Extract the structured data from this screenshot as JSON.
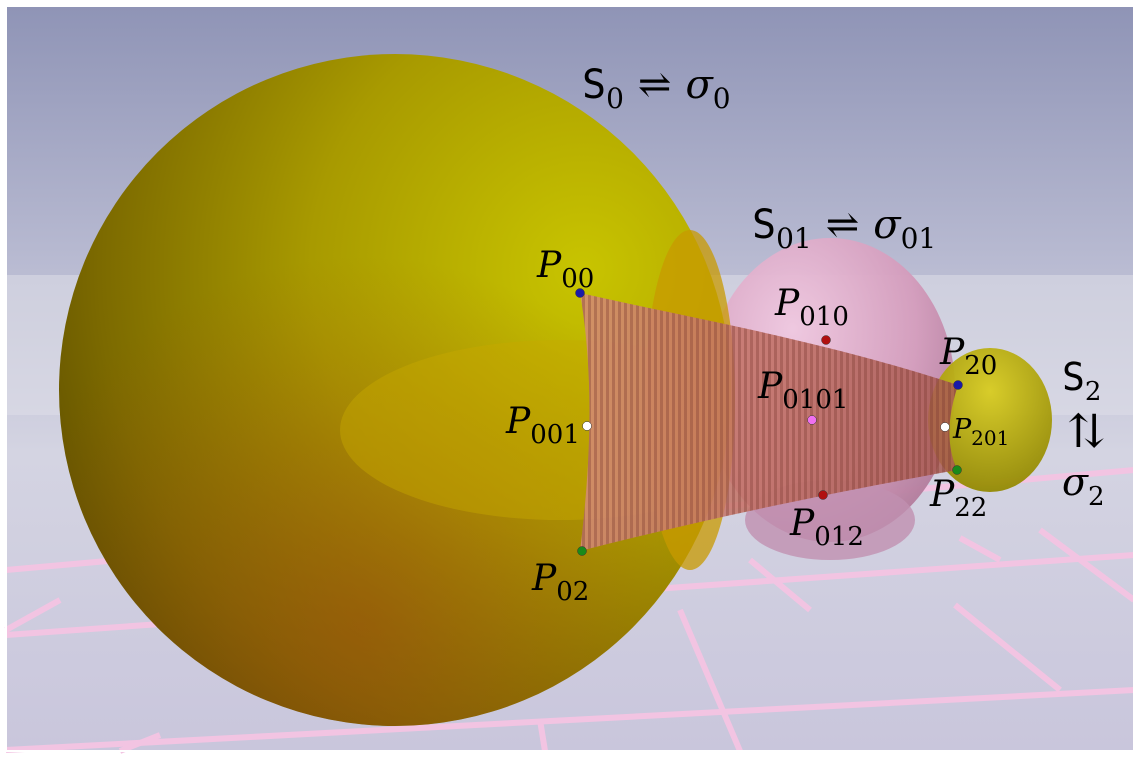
{
  "sphere_labels": {
    "s0": {
      "name": "S",
      "sub": "0",
      "arrow": "⇌",
      "sigma": "σ",
      "sigma_sub": "0"
    },
    "s01": {
      "name": "S",
      "sub": "01",
      "arrow": "⇌",
      "sigma": "σ",
      "sigma_sub": "01"
    },
    "s2": {
      "name": "S",
      "sub": "2",
      "arrow": "⇅",
      "sigma": "σ",
      "sigma_sub": "2"
    }
  },
  "points": [
    {
      "id": "P00",
      "base": "P",
      "sub": "00",
      "color": "#1a1aa8"
    },
    {
      "id": "P001",
      "base": "P",
      "sub": "001",
      "color": "#ffffff"
    },
    {
      "id": "P02",
      "base": "P",
      "sub": "02",
      "color": "#1a8a1a"
    },
    {
      "id": "P010",
      "base": "P",
      "sub": "010",
      "color": "#b01010"
    },
    {
      "id": "P0101",
      "base": "P",
      "sub": "0101",
      "color": "#f070f0"
    },
    {
      "id": "P012",
      "base": "P",
      "sub": "012",
      "color": "#b01010"
    },
    {
      "id": "P20",
      "base": "P",
      "sub": "20",
      "color": "#1a1aa8"
    },
    {
      "id": "P201",
      "base": "P",
      "sub": "201",
      "color": "#ffffff"
    },
    {
      "id": "P22",
      "base": "P",
      "sub": "22",
      "color": "#1a8a1a"
    }
  ],
  "colors": {
    "sphere_yellow": "#b8b000",
    "sphere_pink": "#d8a0c0",
    "surface_red": "#c87060",
    "floor_grid": "#f0c0e0",
    "sky_top": "#9aa0c0",
    "sky_bottom": "#d8d8e8"
  }
}
